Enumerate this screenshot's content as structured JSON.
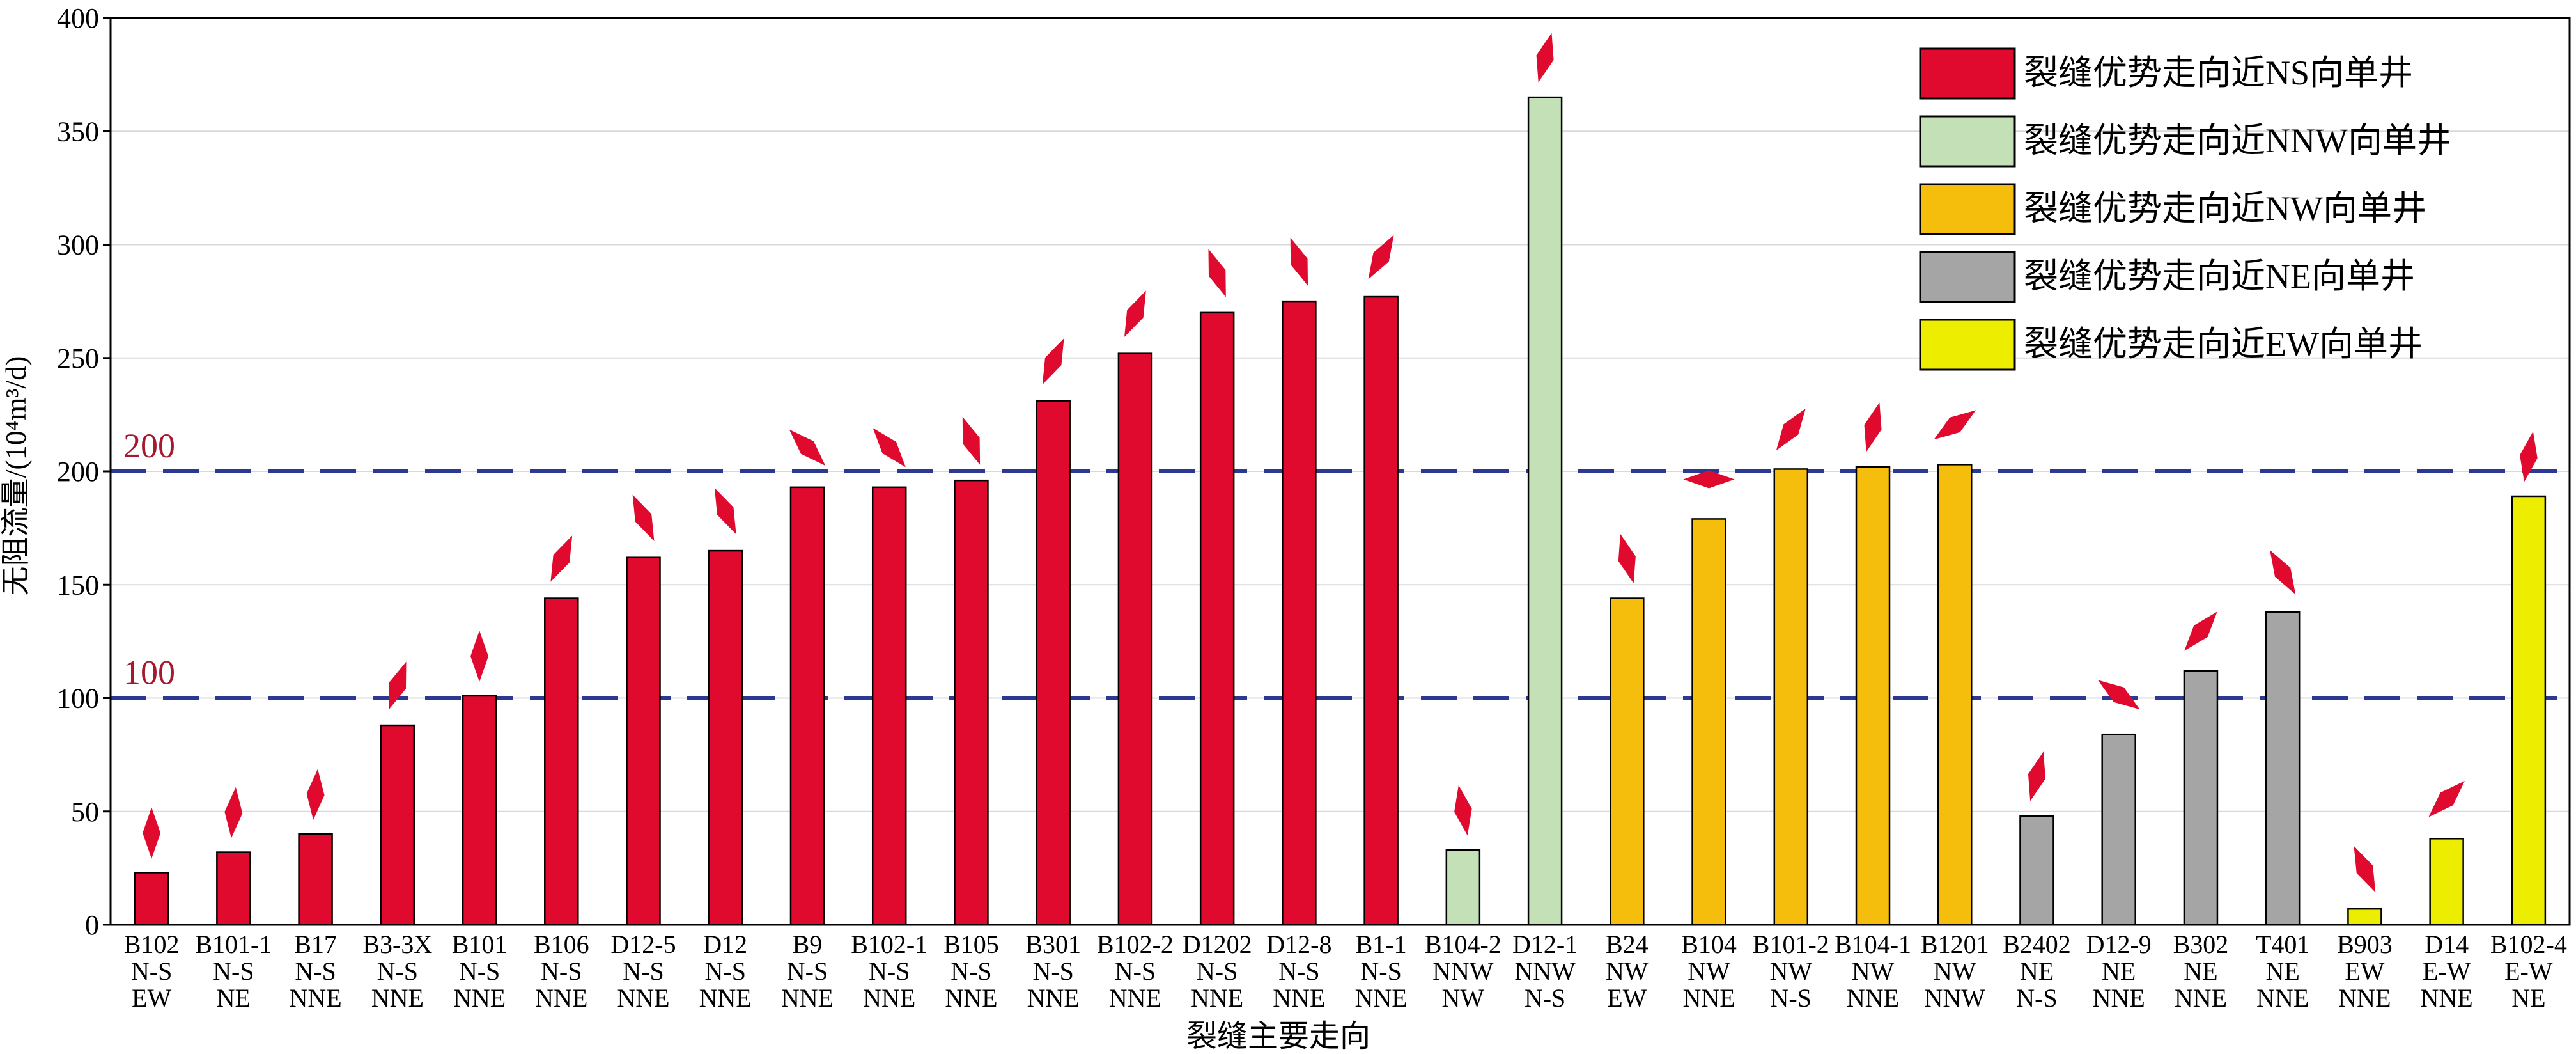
{
  "chart_data": {
    "type": "bar",
    "xlabel": "裂缝主要走向",
    "ylabel": "无阻流量/(10⁴m³/d)",
    "ylim": [
      0,
      400
    ],
    "yticks": [
      0,
      50,
      100,
      150,
      200,
      250,
      300,
      350,
      400
    ],
    "grid": true,
    "legend_position": "top-right",
    "reference_lines": [
      {
        "value": 100,
        "label": "100"
      },
      {
        "value": 200,
        "label": "200"
      }
    ],
    "groups": [
      {
        "name": "裂缝优势走向近NS向单井",
        "color": "#e0092e"
      },
      {
        "name": "裂缝优势走向近NNW向单井",
        "color": "#c3e0b7"
      },
      {
        "name": "裂缝优势走向近NW向单井",
        "color": "#f5be0c"
      },
      {
        "name": "裂缝优势走向近NE向单井",
        "color": "#a5a5a5"
      },
      {
        "name": "裂缝优势走向近EW向单井",
        "color": "#eded00"
      }
    ],
    "bars": [
      {
        "well": "B102",
        "dir1": "N-S",
        "dir2": "EW",
        "value": 23,
        "group": 0,
        "arrow_angle": 0
      },
      {
        "well": "B101-1",
        "dir1": "N-S",
        "dir2": "NE",
        "value": 32,
        "group": 0,
        "arrow_angle": 5
      },
      {
        "well": "B17",
        "dir1": "N-S",
        "dir2": "NNE",
        "value": 40,
        "group": 0,
        "arrow_angle": 5
      },
      {
        "well": "B3-3X",
        "dir1": "N-S",
        "dir2": "NNE",
        "value": 88,
        "group": 0,
        "arrow_angle": 20
      },
      {
        "well": "B101",
        "dir1": "N-S",
        "dir2": "NNE",
        "value": 101,
        "group": 0,
        "arrow_angle": 0
      },
      {
        "well": "B106",
        "dir1": "N-S",
        "dir2": "NNE",
        "value": 144,
        "group": 0,
        "arrow_angle": 25
      },
      {
        "well": "D12-5",
        "dir1": "N-S",
        "dir2": "NNE",
        "value": 162,
        "group": 0,
        "arrow_angle": -25
      },
      {
        "well": "D12",
        "dir1": "N-S",
        "dir2": "NNE",
        "value": 165,
        "group": 0,
        "arrow_angle": -25
      },
      {
        "well": "B9",
        "dir1": "N-S",
        "dir2": "NNE",
        "value": 193,
        "group": 0,
        "arrow_angle": -45
      },
      {
        "well": "B102-1",
        "dir1": "N-S",
        "dir2": "NNE",
        "value": 193,
        "group": 0,
        "arrow_angle": -40
      },
      {
        "well": "B105",
        "dir1": "N-S",
        "dir2": "NNE",
        "value": 196,
        "group": 0,
        "arrow_angle": -20
      },
      {
        "well": "B301",
        "dir1": "N-S",
        "dir2": "NNE",
        "value": 231,
        "group": 0,
        "arrow_angle": 25
      },
      {
        "well": "B102-2",
        "dir1": "N-S",
        "dir2": "NNE",
        "value": 252,
        "group": 0,
        "arrow_angle": 25
      },
      {
        "well": "D1202",
        "dir1": "N-S",
        "dir2": "NNE",
        "value": 270,
        "group": 0,
        "arrow_angle": -20
      },
      {
        "well": "D12-8",
        "dir1": "N-S",
        "dir2": "NNE",
        "value": 275,
        "group": 0,
        "arrow_angle": -20
      },
      {
        "well": "B1-1",
        "dir1": "N-S",
        "dir2": "NNE",
        "value": 277,
        "group": 0,
        "arrow_angle": 30
      },
      {
        "well": "B104-2",
        "dir1": "NNW",
        "dir2": "NW",
        "value": 33,
        "group": 1,
        "arrow_angle": -10
      },
      {
        "well": "D12-1",
        "dir1": "NNW",
        "dir2": "N-S",
        "value": 365,
        "group": 1,
        "arrow_angle": 15
      },
      {
        "well": "B24",
        "dir1": "NW",
        "dir2": "EW",
        "value": 144,
        "group": 2,
        "arrow_angle": -15
      },
      {
        "well": "B104",
        "dir1": "NW",
        "dir2": "NNE",
        "value": 179,
        "group": 2,
        "arrow_angle": 90
      },
      {
        "well": "B101-2",
        "dir1": "NW",
        "dir2": "N-S",
        "value": 201,
        "group": 2,
        "arrow_angle": 35
      },
      {
        "well": "B104-1",
        "dir1": "NW",
        "dir2": "NNE",
        "value": 202,
        "group": 2,
        "arrow_angle": 15
      },
      {
        "well": "B1201",
        "dir1": "NW",
        "dir2": "NNW",
        "value": 203,
        "group": 2,
        "arrow_angle": 55
      },
      {
        "well": "B2402",
        "dir1": "NE",
        "dir2": "N-S",
        "value": 48,
        "group": 3,
        "arrow_angle": 15
      },
      {
        "well": "D12-9",
        "dir1": "NE",
        "dir2": "NNE",
        "value": 84,
        "group": 3,
        "arrow_angle": -55
      },
      {
        "well": "B302",
        "dir1": "NE",
        "dir2": "NNE",
        "value": 112,
        "group": 3,
        "arrow_angle": 40
      },
      {
        "well": "T401",
        "dir1": "NE",
        "dir2": "NNE",
        "value": 138,
        "group": 3,
        "arrow_angle": -30
      },
      {
        "well": "B903",
        "dir1": "EW",
        "dir2": "NNE",
        "value": 7,
        "group": 4,
        "arrow_angle": -25
      },
      {
        "well": "D14",
        "dir1": "E-W",
        "dir2": "NNE",
        "value": 38,
        "group": 4,
        "arrow_angle": 45
      },
      {
        "well": "B102-4",
        "dir1": "E-W",
        "dir2": "NE",
        "value": 189,
        "group": 4,
        "arrow_angle": 10
      }
    ]
  }
}
